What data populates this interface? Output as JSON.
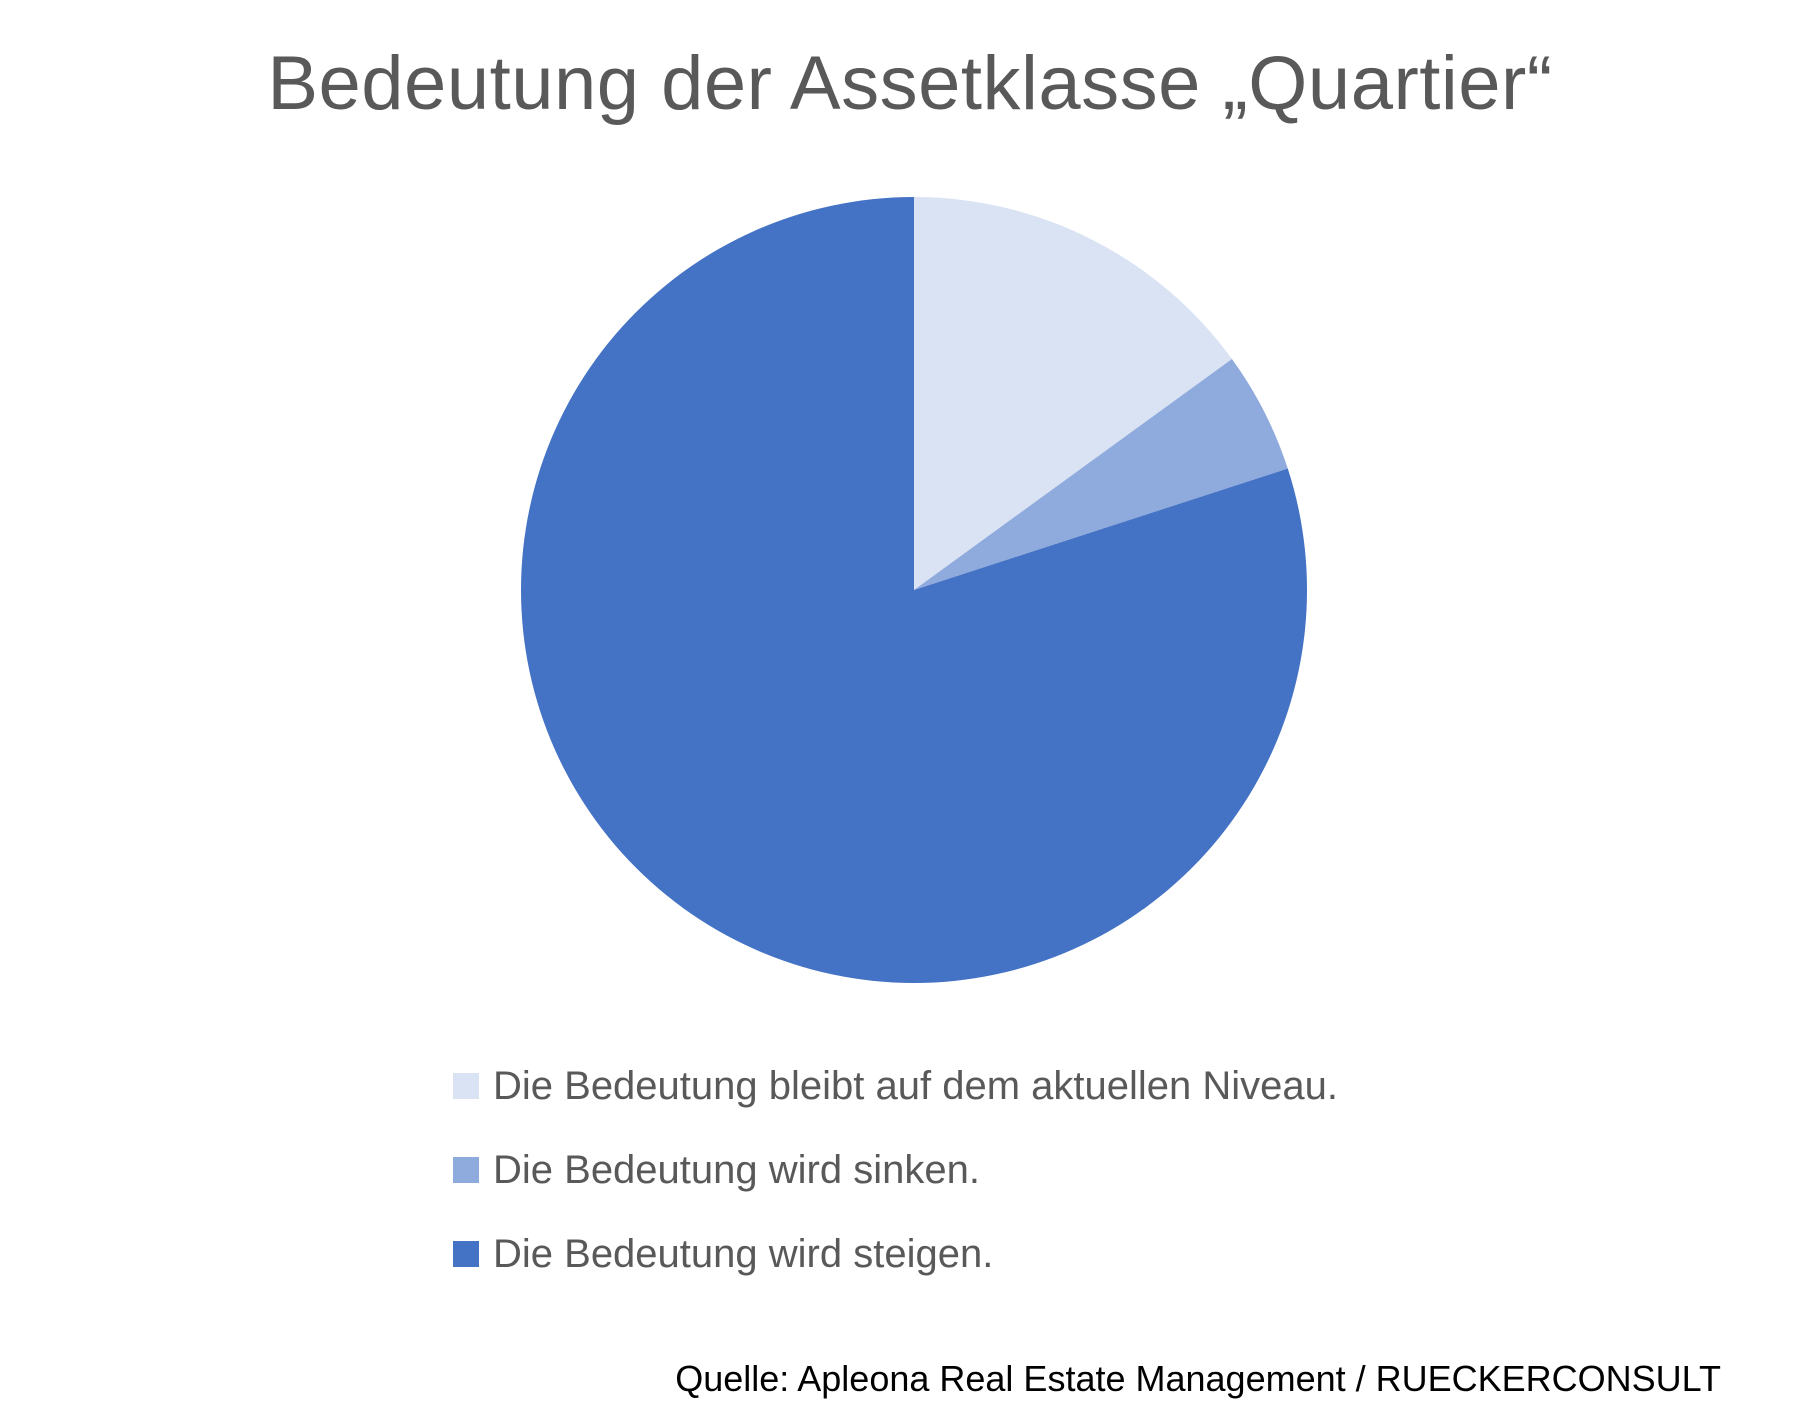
{
  "chart_data": {
    "type": "pie",
    "title": "Bedeutung der Assetklasse „Quartier“",
    "categories": [
      "Die Bedeutung bleibt auf dem aktuellen Niveau.",
      "Die Bedeutung wird sinken.",
      "Die Bedeutung wird steigen."
    ],
    "values": [
      15,
      5,
      80
    ],
    "colors": [
      "#DAE3F3",
      "#8FAADC",
      "#4472C4"
    ],
    "start_angle": "12 o'clock",
    "direction": "clockwise",
    "legend_position": "bottom"
  },
  "source_note": "Quelle: Apleona Real Estate Management / RUECKERCONSULT"
}
